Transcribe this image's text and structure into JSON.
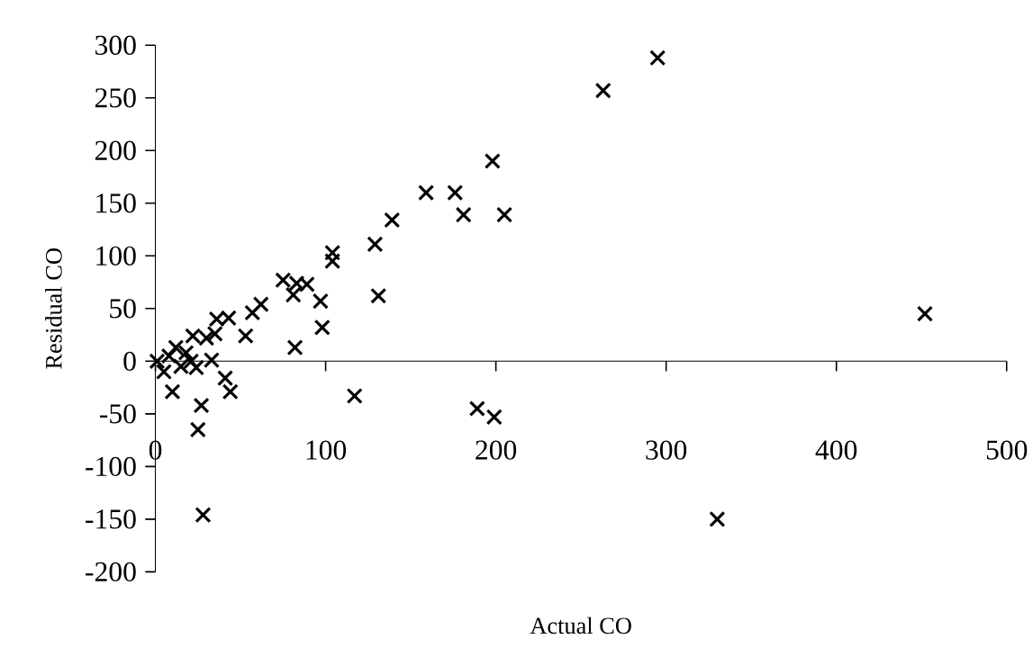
{
  "chart_data": {
    "type": "scatter",
    "xlabel": "Actual CO",
    "ylabel": "Residual CO",
    "xlim": [
      0,
      500
    ],
    "ylim": [
      -200,
      300
    ],
    "xticks": [
      0,
      100,
      200,
      300,
      400,
      500
    ],
    "yticks": [
      -200,
      -150,
      -100,
      -50,
      0,
      50,
      100,
      150,
      200,
      250,
      300
    ],
    "marker": "cross",
    "series": [
      {
        "color": "#000000",
        "x": [
          295,
          263,
          452,
          330,
          198,
          159,
          176,
          181,
          205,
          139,
          129,
          104,
          104,
          75,
          83,
          89,
          81,
          97,
          131,
          98,
          82,
          117,
          189,
          199,
          62,
          57,
          53,
          36,
          30,
          33,
          1,
          12,
          10,
          27,
          25,
          41,
          44,
          28,
          22,
          43,
          35,
          21,
          24,
          8,
          18,
          15,
          5
        ],
        "values": [
          288,
          257,
          45,
          -150,
          190,
          160,
          160,
          139,
          139,
          134,
          111,
          103,
          95,
          77,
          74,
          73,
          63,
          57,
          62,
          32,
          13,
          -33,
          -45,
          -53,
          54,
          46,
          24,
          40,
          22,
          1,
          0,
          13,
          -29,
          -42,
          -65,
          -16,
          -29,
          -146,
          24,
          41,
          26,
          0,
          -6,
          5,
          8,
          -5,
          -10
        ]
      }
    ]
  }
}
